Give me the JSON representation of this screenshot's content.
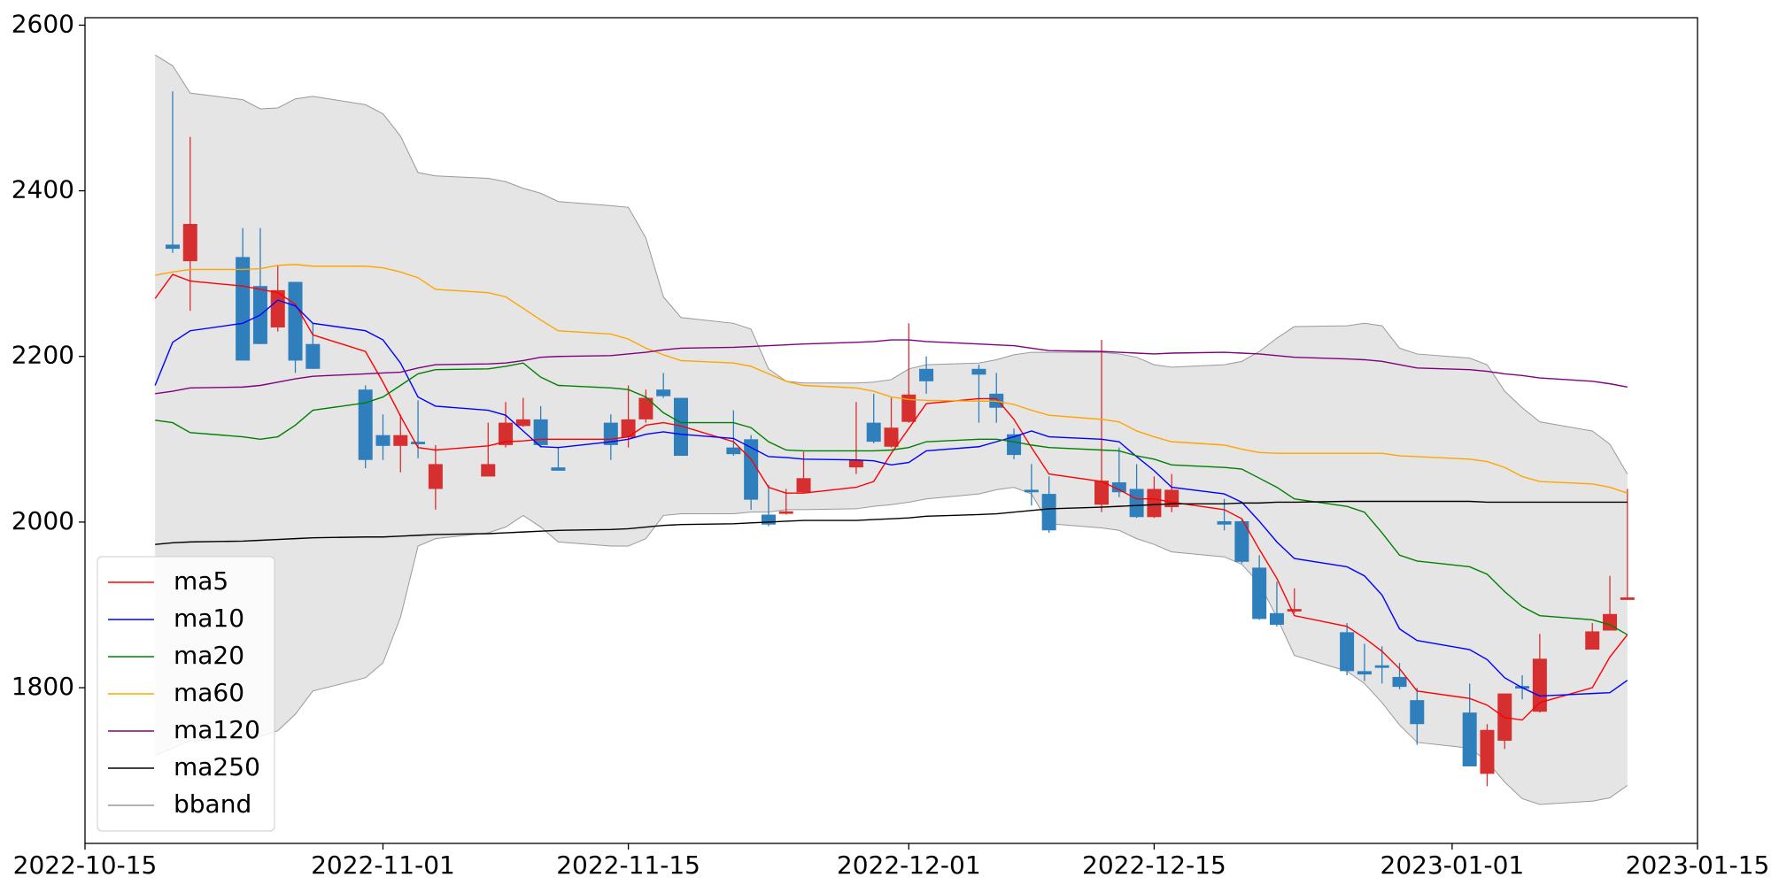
{
  "chart_data": {
    "type": "candlestick",
    "x": [
      "2022-10-19",
      "2022-10-20",
      "2022-10-21",
      "2022-10-24",
      "2022-10-25",
      "2022-10-26",
      "2022-10-27",
      "2022-10-28",
      "2022-10-31",
      "2022-11-01",
      "2022-11-02",
      "2022-11-03",
      "2022-11-04",
      "2022-11-07",
      "2022-11-08",
      "2022-11-09",
      "2022-11-10",
      "2022-11-11",
      "2022-11-14",
      "2022-11-15",
      "2022-11-16",
      "2022-11-17",
      "2022-11-18",
      "2022-11-21",
      "2022-11-22",
      "2022-11-23",
      "2022-11-24",
      "2022-11-25",
      "2022-11-28",
      "2022-11-29",
      "2022-11-30",
      "2022-12-01",
      "2022-12-02",
      "2022-12-05",
      "2022-12-06",
      "2022-12-07",
      "2022-12-08",
      "2022-12-09",
      "2022-12-12",
      "2022-12-13",
      "2022-12-14",
      "2022-12-15",
      "2022-12-16",
      "2022-12-19",
      "2022-12-20",
      "2022-12-21",
      "2022-12-22",
      "2022-12-23",
      "2022-12-26",
      "2022-12-27",
      "2022-12-28",
      "2022-12-29",
      "2022-12-30",
      "2023-01-02",
      "2023-01-03",
      "2023-01-04",
      "2023-01-05",
      "2023-01-06",
      "2023-01-09",
      "2023-01-10",
      "2023-01-11"
    ],
    "open": [
      null,
      2335,
      2315,
      2320,
      2285,
      2235,
      2290,
      2215,
      2160,
      2105,
      2092,
      2097,
      2040,
      2055,
      2093,
      2116,
      2124,
      2066,
      2120,
      2102,
      2124,
      2160,
      2150,
      2090,
      2100,
      2009,
      2010,
      2036,
      2066,
      2120,
      2091,
      2121,
      2185,
      2185,
      2155,
      2106,
      2039,
      2034,
      2021,
      2048,
      2040,
      2006,
      2018,
      2001,
      2001,
      1945,
      1890,
      1892,
      1867,
      1820,
      1827,
      1813,
      1785,
      1770,
      1696,
      1736,
      1802,
      1771,
      1846,
      1869,
      1906
    ],
    "high": [
      null,
      2520,
      2465,
      2355,
      2355,
      2310,
      2290,
      2240,
      2165,
      2130,
      2130,
      2147,
      2093,
      2120,
      2145,
      2150,
      2140,
      2090,
      2130,
      2165,
      2160,
      2180,
      2150,
      2135,
      2105,
      2045,
      2040,
      2085,
      2145,
      2155,
      2150,
      2240,
      2200,
      2190,
      2180,
      2113,
      2070,
      2055,
      2220,
      2090,
      2070,
      2055,
      2058,
      2028,
      2003,
      1960,
      1928,
      1920,
      1878,
      1853,
      1850,
      1830,
      1800,
      1805,
      1756,
      1793,
      1815,
      1865,
      1878,
      1935,
      2040
    ],
    "low": [
      null,
      2325,
      2255,
      2195,
      2215,
      2230,
      2180,
      2185,
      2065,
      2075,
      2060,
      2077,
      2015,
      2055,
      2090,
      2115,
      2090,
      2062,
      2075,
      2090,
      2120,
      2150,
      2080,
      2080,
      2015,
      1995,
      2009,
      2035,
      2058,
      2095,
      2090,
      2120,
      2155,
      2120,
      2120,
      2076,
      2020,
      1987,
      2012,
      2030,
      2005,
      2005,
      2012,
      1990,
      1950,
      1882,
      1874,
      1890,
      1815,
      1808,
      1805,
      1798,
      1731,
      1705,
      1681,
      1726,
      1786,
      1770,
      1846,
      1869,
      1906
    ],
    "close": [
      null,
      2330,
      2360,
      2195,
      2215,
      2280,
      2195,
      2185,
      2075,
      2092,
      2105,
      2094,
      2070,
      2070,
      2120,
      2124,
      2093,
      2062,
      2093,
      2124,
      2150,
      2152,
      2080,
      2082,
      2027,
      1997,
      2013,
      2053,
      2075,
      2097,
      2114,
      2154,
      2170,
      2178,
      2138,
      2081,
      2036,
      1990,
      2050,
      2036,
      2006,
      2040,
      2039,
      1997,
      1952,
      1883,
      1876,
      1895,
      1820,
      1816,
      1824,
      1801,
      1756,
      1705,
      1749,
      1793,
      1799,
      1835,
      1868,
      1889,
      1909
    ],
    "up_color": "#d62f2f",
    "down_color": "#2f7fbd",
    "series": [
      {
        "name": "ma5",
        "color": "#ff0000",
        "values": [
          2270,
          2299,
          2291,
          2285,
          2281,
          2277,
          2263,
          2226,
          2206,
          2169,
          2128,
          2090,
          2087,
          2092,
          2097,
          2098,
          2100,
          2100,
          2100,
          2103,
          2117,
          2120,
          2116,
          2097,
          2076,
          2042,
          2035,
          2035,
          2042,
          2049,
          2083,
          2113,
          2143,
          2149,
          2149,
          2124,
          2090,
          2058,
          2049,
          2039,
          2028,
          2028,
          2024,
          2015,
          2004,
          1967,
          1932,
          1887,
          1874,
          1860,
          1844,
          1823,
          1796,
          1787,
          1779,
          1764,
          1761,
          1782,
          1800,
          1837,
          1864
        ]
      },
      {
        "name": "ma10",
        "color": "#0000ff",
        "values": [
          2165,
          2217,
          2231,
          2240,
          2250,
          2268,
          2261,
          2240,
          2231,
          2220,
          2192,
          2151,
          2140,
          2135,
          2129,
          2110,
          2091,
          2090,
          2097,
          2100,
          2106,
          2109,
          2106,
          2101,
          2090,
          2079,
          2078,
          2076,
          2075,
          2074,
          2069,
          2072,
          2086,
          2091,
          2097,
          2103,
          2110,
          2103,
          2100,
          2097,
          2079,
          2062,
          2042,
          2034,
          2024,
          2001,
          1976,
          1956,
          1946,
          1935,
          1912,
          1871,
          1857,
          1846,
          1834,
          1812,
          1800,
          1790,
          1793,
          1794,
          1809
        ]
      },
      {
        "name": "ma20",
        "color": "#008000",
        "values": [
          2123,
          2120,
          2108,
          2103,
          2100,
          2103,
          2117,
          2135,
          2144,
          2151,
          2165,
          2179,
          2184,
          2185,
          2188,
          2192,
          2175,
          2165,
          2162,
          2160,
          2151,
          2132,
          2120,
          2120,
          2114,
          2097,
          2087,
          2086,
          2086,
          2086,
          2087,
          2090,
          2097,
          2100,
          2100,
          2097,
          2093,
          2090,
          2087,
          2086,
          2080,
          2076,
          2069,
          2066,
          2064,
          2053,
          2042,
          2028,
          2019,
          2012,
          1987,
          1960,
          1953,
          1946,
          1937,
          1916,
          1898,
          1887,
          1882,
          1876,
          1864
        ]
      },
      {
        "name": "ma60",
        "color": "#ffa500",
        "values": [
          2298,
          2302,
          2305,
          2305,
          2306,
          2310,
          2311,
          2309,
          2309,
          2307,
          2302,
          2295,
          2281,
          2277,
          2272,
          2258,
          2244,
          2231,
          2227,
          2221,
          2210,
          2202,
          2195,
          2192,
          2188,
          2179,
          2170,
          2165,
          2162,
          2158,
          2151,
          2148,
          2147,
          2146,
          2146,
          2142,
          2135,
          2129,
          2124,
          2121,
          2110,
          2103,
          2097,
          2093,
          2088,
          2084,
          2083,
          2083,
          2083,
          2083,
          2083,
          2080,
          2079,
          2076,
          2073,
          2066,
          2055,
          2049,
          2046,
          2042,
          2035
        ]
      },
      {
        "name": "ma120",
        "color": "#800080",
        "values": [
          2155,
          2158,
          2162,
          2163,
          2165,
          2169,
          2173,
          2176,
          2179,
          2180,
          2181,
          2186,
          2190,
          2191,
          2192,
          2195,
          2199,
          2200,
          2201,
          2203,
          2205,
          2208,
          2210,
          2211,
          2212,
          2213,
          2214,
          2215,
          2217,
          2218,
          2220,
          2220,
          2218,
          2215,
          2214,
          2213,
          2210,
          2207,
          2206,
          2205,
          2204,
          2203,
          2204,
          2205,
          2204,
          2203,
          2201,
          2199,
          2197,
          2196,
          2194,
          2190,
          2186,
          2184,
          2182,
          2179,
          2177,
          2174,
          2170,
          2167,
          2163
        ]
      },
      {
        "name": "ma250",
        "color": "#000000",
        "values": [
          1973,
          1975,
          1976,
          1977,
          1978,
          1979,
          1980,
          1981,
          1982,
          1982,
          1983,
          1984,
          1985,
          1986,
          1987,
          1988,
          1989,
          1990,
          1991,
          1992,
          1994,
          1996,
          1997,
          1998,
          1999,
          2000,
          2001,
          2002,
          2002,
          2003,
          2004,
          2005,
          2007,
          2009,
          2010,
          2012,
          2014,
          2016,
          2018,
          2019,
          2020,
          2021,
          2022,
          2022,
          2023,
          2023,
          2024,
          2024,
          2025,
          2025,
          2025,
          2025,
          2025,
          2025,
          2024,
          2024,
          2024,
          2024,
          2024,
          2024,
          2024
        ]
      }
    ],
    "bband": {
      "name": "bband",
      "color": "#999999",
      "fill": "#e5e5e5",
      "upper": [
        2564,
        2551,
        2518,
        2510,
        2499,
        2500,
        2511,
        2514,
        2504,
        2493,
        2466,
        2422,
        2418,
        2415,
        2411,
        2403,
        2397,
        2387,
        2382,
        2380,
        2343,
        2272,
        2247,
        2240,
        2233,
        2185,
        2170,
        2168,
        2168,
        2169,
        2172,
        2185,
        2190,
        2192,
        2196,
        2202,
        2205,
        2205,
        2205,
        2203,
        2199,
        2190,
        2187,
        2190,
        2194,
        2206,
        2222,
        2236,
        2237,
        2240,
        2237,
        2210,
        2203,
        2198,
        2190,
        2158,
        2138,
        2121,
        2110,
        2094,
        2058
      ],
      "lower": [
        1718,
        1727,
        1736,
        1738,
        1741,
        1748,
        1768,
        1796,
        1812,
        1830,
        1885,
        1971,
        1980,
        1987,
        1994,
        2008,
        1994,
        1976,
        1971,
        1971,
        1980,
        2008,
        2010,
        2010,
        2012,
        2012,
        2015,
        2015,
        2016,
        2019,
        2021,
        2024,
        2028,
        2034,
        2039,
        2042,
        2034,
        1998,
        1993,
        1990,
        1980,
        1973,
        1964,
        1958,
        1949,
        1926,
        1885,
        1839,
        1820,
        1805,
        1782,
        1755,
        1734,
        1727,
        1711,
        1686,
        1666,
        1659,
        1663,
        1667,
        1682
      ]
    },
    "xlim": [
      "2022-10-15",
      "2023-01-15"
    ],
    "xticks": [
      "2022-10-15",
      "2022-11-01",
      "2022-11-15",
      "2022-12-01",
      "2022-12-15",
      "2023-01-01",
      "2023-01-15"
    ],
    "ylim": [
      1612,
      2609
    ],
    "yticks": [
      1800,
      2000,
      2200,
      2400,
      2600
    ],
    "legend": "lower left"
  }
}
